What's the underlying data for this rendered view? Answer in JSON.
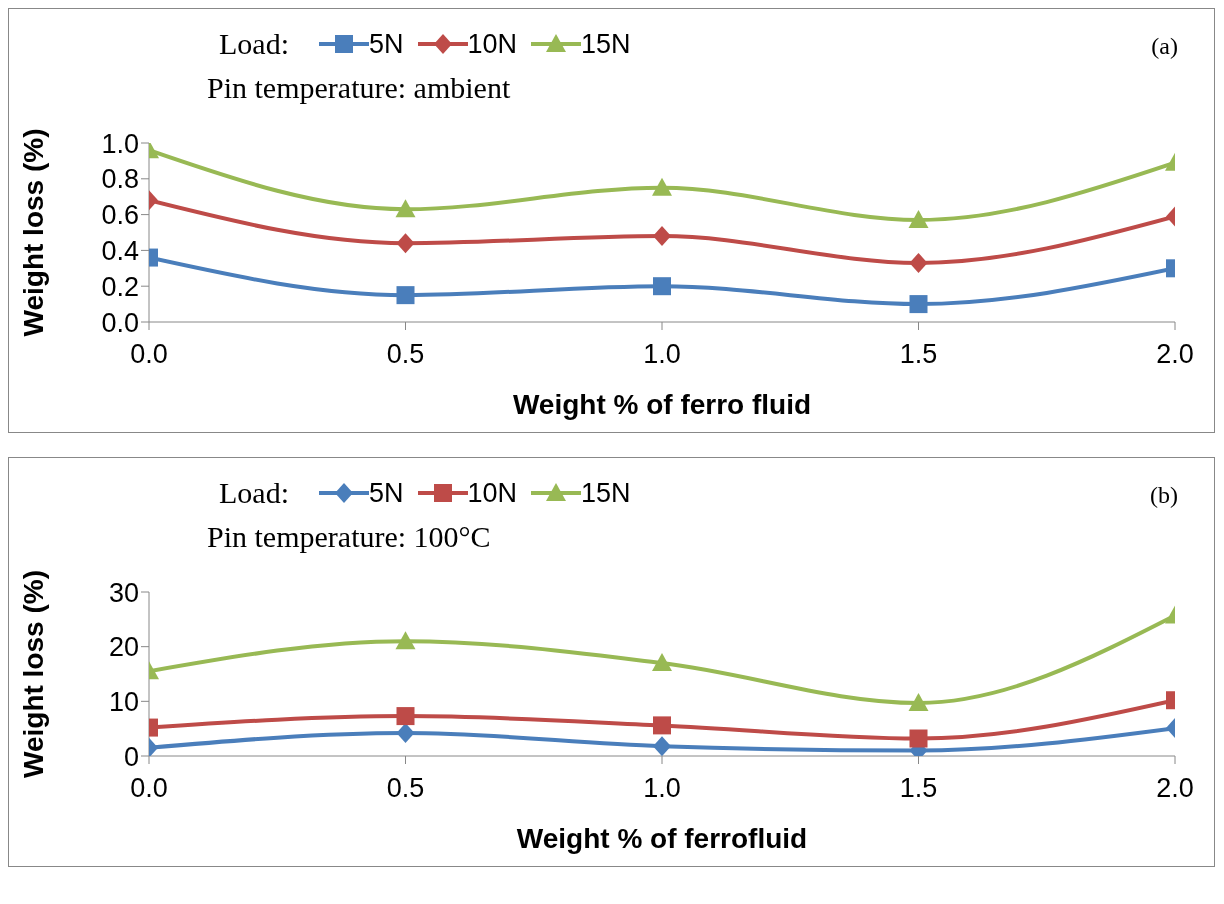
{
  "chart_data": [
    {
      "type": "line",
      "legend_title": "Load:",
      "xlabel": "Weight % of ferro fluid",
      "ylabel": "Weight loss (%)",
      "annotations": [
        "Pin temperature: ambient",
        "(a)"
      ],
      "x": [
        0,
        0.5,
        1,
        1.5,
        2
      ],
      "series": [
        {
          "name": "5N",
          "color": "#4a7ebb",
          "marker": "square",
          "values": [
            0.36,
            0.15,
            0.2,
            0.1,
            0.3
          ]
        },
        {
          "name": "10N",
          "color": "#be4b48",
          "marker": "diamond",
          "values": [
            0.68,
            0.44,
            0.48,
            0.33,
            0.59
          ]
        },
        {
          "name": "15N",
          "color": "#98b954",
          "marker": "triangle",
          "values": [
            0.96,
            0.63,
            0.75,
            0.57,
            0.89
          ]
        }
      ],
      "xlim": [
        0,
        2
      ],
      "xticks": [
        {
          "value": 0,
          "label": "0.0"
        },
        {
          "value": 0.5,
          "label": "0.5"
        },
        {
          "value": 1,
          "label": "1.0"
        },
        {
          "value": 1.5,
          "label": "1.5"
        },
        {
          "value": 2,
          "label": "2.0"
        }
      ],
      "ylim": [
        0,
        1
      ],
      "yticks": [
        {
          "value": 0,
          "label": "0.0"
        },
        {
          "value": 0.2,
          "label": "0.2"
        },
        {
          "value": 0.4,
          "label": "0.4"
        },
        {
          "value": 0.6,
          "label": "0.6"
        },
        {
          "value": 0.8,
          "label": "0.8"
        },
        {
          "value": 1,
          "label": "1.0"
        }
      ],
      "grid": false,
      "legend": "top"
    },
    {
      "type": "line",
      "legend_title": "Load:",
      "xlabel": "Weight % of ferrofluid",
      "ylabel": "Weight loss (%)",
      "annotations": [
        "Pin temperature: 100°C",
        "(b)"
      ],
      "x": [
        0,
        0.5,
        1,
        1.5,
        2
      ],
      "series": [
        {
          "name": "5N",
          "color": "#4a7ebb",
          "marker": "diamond",
          "values": [
            1.5,
            4.2,
            1.8,
            1.0,
            5.1
          ]
        },
        {
          "name": "10N",
          "color": "#be4b48",
          "marker": "square",
          "values": [
            5.2,
            7.3,
            5.6,
            3.2,
            10.2
          ]
        },
        {
          "name": "15N",
          "color": "#98b954",
          "marker": "triangle",
          "values": [
            15.5,
            21,
            17,
            9.7,
            25.7
          ]
        }
      ],
      "xlim": [
        0,
        2
      ],
      "xticks": [
        {
          "value": 0,
          "label": "0.0"
        },
        {
          "value": 0.5,
          "label": "0.5"
        },
        {
          "value": 1,
          "label": "1.0"
        },
        {
          "value": 1.5,
          "label": "1.5"
        },
        {
          "value": 2,
          "label": "2.0"
        }
      ],
      "ylim": [
        0,
        30
      ],
      "yticks": [
        0,
        10,
        20,
        30
      ],
      "grid": false,
      "legend": "top"
    }
  ]
}
